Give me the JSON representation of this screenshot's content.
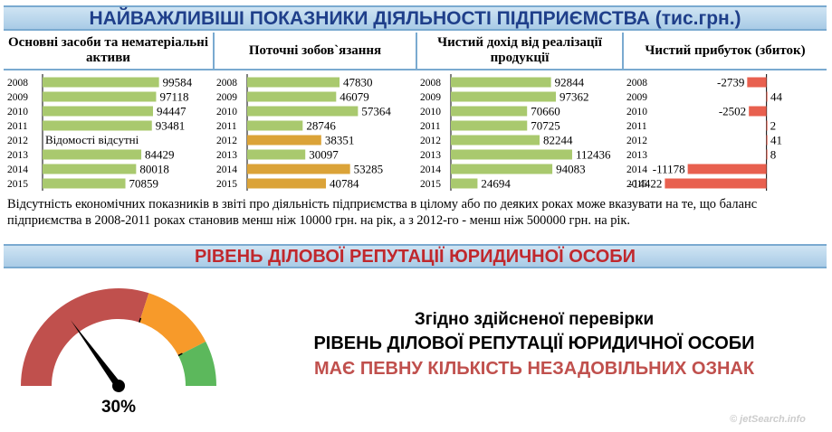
{
  "header": {
    "title": "НАЙВАЖЛИВІШІ ПОКАЗНИКИ ДІЯЛЬНОСТІ ПІДПРИЄМСТВА (тис.грн.)"
  },
  "columns": [
    {
      "title": "Основні засоби та нематеріальні активи"
    },
    {
      "title": "Поточні зобов`язання"
    },
    {
      "title": "Чистий дохід від реалізації продукції"
    },
    {
      "title": "Чистий прибуток (збиток)"
    }
  ],
  "chart_data": [
    {
      "type": "bar",
      "title": "Основні засоби та нематеріальні активи",
      "categories": [
        "2008",
        "2009",
        "2010",
        "2011",
        "2012",
        "2013",
        "2014",
        "2015"
      ],
      "values": [
        99584,
        97118,
        94447,
        93481,
        null,
        84429,
        80018,
        70859
      ],
      "missing_label": "Відомості відсутні",
      "xlim": [
        0,
        120000
      ],
      "bar_colors": [
        "#a9c96e",
        "#a9c96e",
        "#a9c96e",
        "#a9c96e",
        "#a9c96e",
        "#a9c96e",
        "#a9c96e",
        "#a9c96e"
      ]
    },
    {
      "type": "bar",
      "title": "Поточні зобов`язання",
      "categories": [
        "2008",
        "2009",
        "2010",
        "2011",
        "2012",
        "2013",
        "2014",
        "2015"
      ],
      "values": [
        47830,
        46079,
        57364,
        28746,
        38351,
        30097,
        53285,
        40784
      ],
      "xlim": [
        0,
        75000
      ],
      "bar_colors": [
        "#a9c96e",
        "#a9c96e",
        "#a9c96e",
        "#a9c96e",
        "#dba338",
        "#a9c96e",
        "#dba338",
        "#dba338"
      ]
    },
    {
      "type": "bar",
      "title": "Чистий дохід від реалізації продукції",
      "categories": [
        "2008",
        "2009",
        "2010",
        "2011",
        "2012",
        "2013",
        "2014",
        "2015"
      ],
      "values": [
        92844,
        97362,
        70660,
        70725,
        82244,
        112436,
        94083,
        24694
      ],
      "xlim": [
        0,
        141000
      ],
      "bar_colors": [
        "#a9c96e",
        "#a9c96e",
        "#a9c96e",
        "#a9c96e",
        "#a9c96e",
        "#a9c96e",
        "#a9c96e",
        "#a9c96e"
      ]
    },
    {
      "type": "bar",
      "title": "Чистий прибуток (збиток)",
      "categories": [
        "2008",
        "2009",
        "2010",
        "2011",
        "2012",
        "2013",
        "2014",
        "2015"
      ],
      "values": [
        -2739,
        44,
        -2502,
        2,
        41,
        8,
        -11178,
        -14422
      ],
      "xlim": [
        -15500,
        3000
      ],
      "bar_colors": [
        "#e8604f",
        "#e8604f",
        "#e8604f",
        "#e8604f",
        "#e8604f",
        "#e8604f",
        "#e8604f",
        "#e8604f"
      ]
    }
  ],
  "note": "Відсутність економічних показників в звіті про діяльність підприємства в цілому або по деяких роках може вказувати на те, що баланс підприємства в 2008-2011 роках становив менш ніж 10000 грн. на рік, а з 2012-го - менш ніж 500000 грн. на рік.",
  "reputation": {
    "title": "РІВЕНЬ ДІЛОВОЇ РЕПУТАЦІЇ ЮРИДИЧНОЇ ОСОБИ",
    "gauge": {
      "value": 30,
      "value_label": "30%",
      "zones": [
        {
          "from": 0,
          "to": 60,
          "color": "#c0504d"
        },
        {
          "from": 60,
          "to": 85,
          "color": "#f79a2a"
        },
        {
          "from": 85,
          "to": 100,
          "color": "#5cb85c"
        }
      ]
    },
    "line1": "Згідно здійсненої перевірки",
    "line2": "РІВЕНЬ ДІЛОВОЇ РЕПУТАЦІЇ ЮРИДИЧНОЇ ОСОБИ",
    "line3": "МАЄ ПЕВНУ КІЛЬКІСТЬ НЕЗАДОВІЛЬНИХ ОЗНАК"
  },
  "watermark": "© jetSearch.info"
}
